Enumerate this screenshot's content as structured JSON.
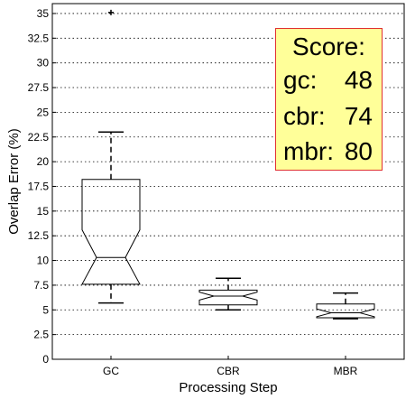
{
  "chart_data": {
    "type": "boxplot",
    "title": "",
    "xlabel": "Processing Step",
    "ylabel": "Overlap Error (%)",
    "ylim": [
      0,
      36
    ],
    "yticks": [
      "0",
      "2.5",
      "5",
      "7.5",
      "10",
      "12.5",
      "15",
      "17.5",
      "20",
      "22.5",
      "25",
      "27.5",
      "30",
      "32.5",
      "35"
    ],
    "grid": "horizontal dotted",
    "categories": [
      "GC",
      "CBR",
      "MBR"
    ],
    "boxes": [
      {
        "category": "GC",
        "whisker_low": 5.7,
        "q1": 7.6,
        "median": 10.3,
        "q3": 18.2,
        "whisker_high": 23.0,
        "notch_low": 7.6,
        "notch_high": 13.1,
        "outliers": [
          35.1
        ]
      },
      {
        "category": "CBR",
        "whisker_low": 5.0,
        "q1": 5.5,
        "median": 6.4,
        "q3": 7.0,
        "whisker_high": 8.2,
        "notch_low": 6.0,
        "notch_high": 6.8,
        "outliers": []
      },
      {
        "category": "MBR",
        "whisker_low": 4.1,
        "q1": 4.2,
        "median": 4.7,
        "q3": 5.6,
        "whisker_high": 6.7,
        "notch_low": 4.3,
        "notch_high": 5.1,
        "outliers": []
      }
    ]
  },
  "score_box": {
    "title": "Score:",
    "rows": [
      {
        "label": "gc:",
        "value": "48"
      },
      {
        "label": "cbr:",
        "value": "74"
      },
      {
        "label": "mbr:",
        "value": "80"
      }
    ],
    "background": "#ffff99",
    "border": "#e03030"
  }
}
